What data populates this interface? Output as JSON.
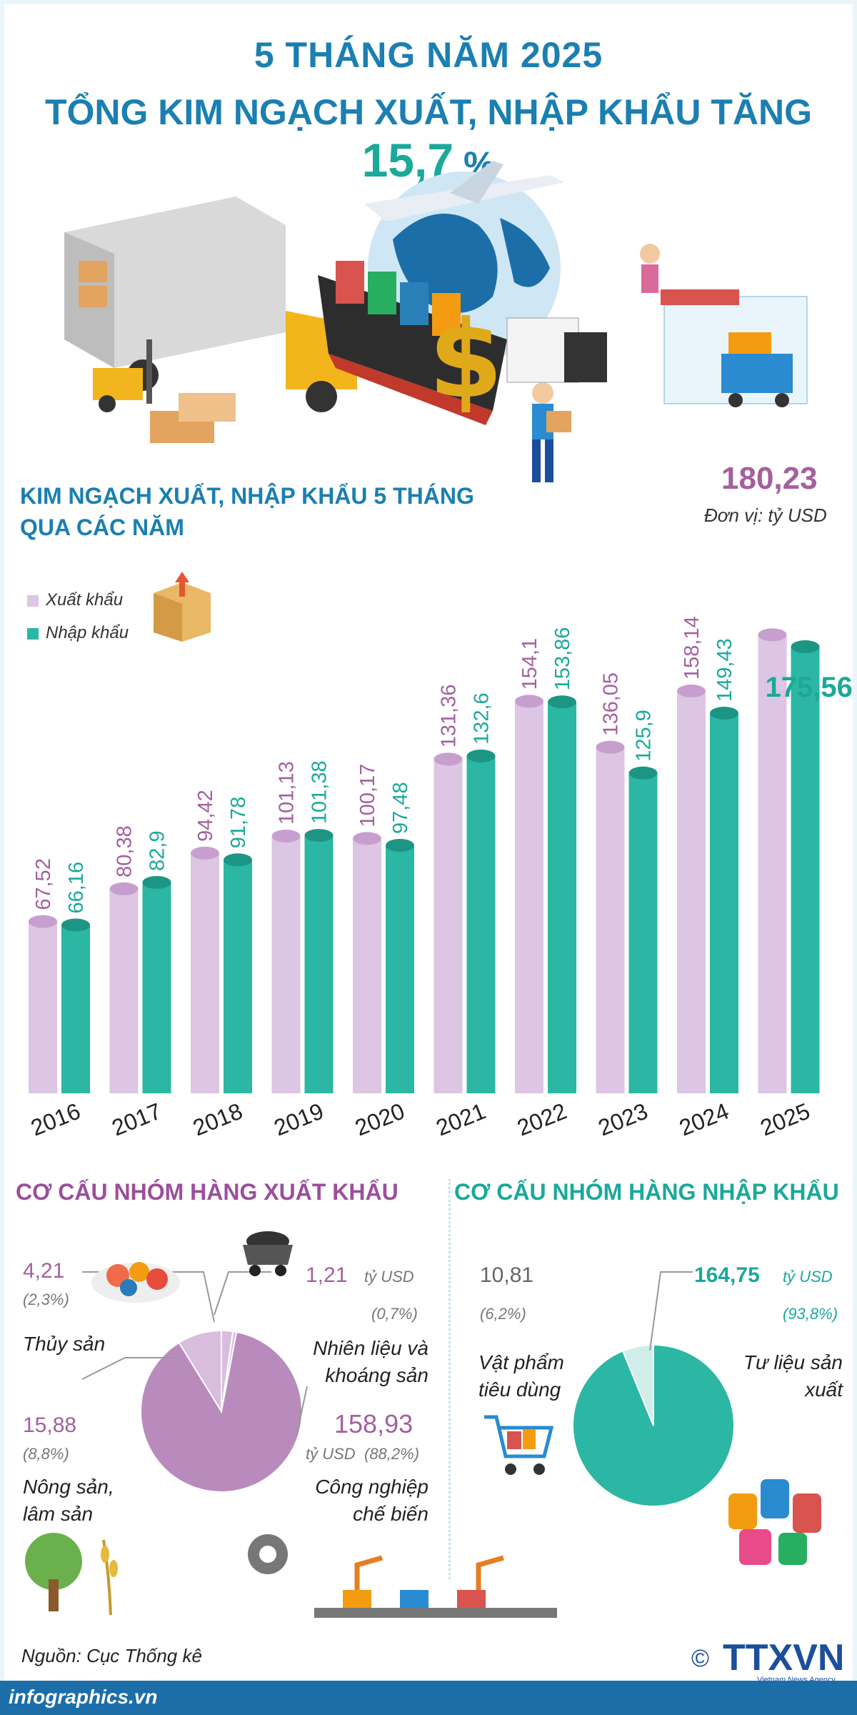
{
  "header": {
    "line1": "5 THÁNG NĂM 2025",
    "line2_prefix": "TỔNG KIM NGẠCH XUẤT, NHẬP KHẨU TĂNG ",
    "line2_highlight": "15,7",
    "line2_suffix": " %"
  },
  "chart_data": [
    {
      "type": "bar",
      "title": "KIM NGẠCH XUẤT, NHẬP KHẨU 5 THÁNG QUA CÁC NĂM",
      "title_line1": "KIM NGẠCH XUẤT, NHẬP KHẨU 5 THÁNG",
      "title_line2": "QUA CÁC NĂM",
      "unit": "Đơn vị: tỷ USD",
      "categories": [
        "2016",
        "2017",
        "2018",
        "2019",
        "2020",
        "2021",
        "2022",
        "2023",
        "2024",
        "2025"
      ],
      "series": [
        {
          "name": "Xuất khẩu",
          "color": "#dcc6e3",
          "labelColor": "#a3609d",
          "values": [
            67.52,
            80.38,
            94.42,
            101.13,
            100.17,
            131.36,
            154.1,
            136.05,
            158.14,
            180.23
          ],
          "labels": [
            "67,52",
            "80,38",
            "94,42",
            "101,13",
            "100,17",
            "131,36",
            "154,1",
            "136,05",
            "158,14",
            "180,23"
          ]
        },
        {
          "name": "Nhập khẩu",
          "color": "#2bb7a3",
          "labelColor": "#1aa99a",
          "values": [
            66.16,
            82.9,
            91.78,
            101.38,
            97.48,
            132.6,
            153.86,
            125.9,
            149.43,
            175.56
          ],
          "labels": [
            "66,16",
            "82,9",
            "91,78",
            "101,38",
            "97,48",
            "132,6",
            "153,86",
            "125,9",
            "149,43",
            "175,56"
          ]
        }
      ],
      "ylim": [
        0,
        190
      ],
      "grid": false,
      "legend": "left"
    },
    {
      "type": "pie",
      "title": "CƠ CẤU NHÓM HÀNG XUẤT KHẨU",
      "color": "#b98bbd",
      "slices": [
        {
          "name": "Thủy sản",
          "value": 4.21,
          "value_label": "4,21",
          "percent": "(2,3%)",
          "pct": 2.3
        },
        {
          "name": "Nhiên liệu và khoáng sản",
          "value": 1.21,
          "value_label": "1,21",
          "unit": "tỷ USD",
          "percent": "(0,7%)",
          "pct": 0.7
        },
        {
          "name": "Công nghiệp chế biến",
          "value": 158.93,
          "value_label": "158,93",
          "unit": "tỷ USD",
          "percent": "(88,2%)",
          "pct": 88.2
        },
        {
          "name": "Nông sản, lâm sản",
          "value": 15.88,
          "value_label": "15,88",
          "percent": "(8,8%)",
          "pct": 8.8
        }
      ]
    },
    {
      "type": "pie",
      "title": "CƠ CẤU NHÓM HÀNG NHẬP KHẨU",
      "color": "#2bb7a3",
      "slices": [
        {
          "name": "Tư liệu sản xuất",
          "value": 164.75,
          "value_label": "164,75",
          "unit": "tỷ USD",
          "percent": "(93,8%)",
          "pct": 93.8
        },
        {
          "name": "Vật phẩm tiêu dùng",
          "value": 10.81,
          "value_label": "10,81",
          "percent": "(6,2%)",
          "pct": 6.2
        }
      ]
    }
  ],
  "footer": {
    "source": "Nguồn: Cục Thống kê",
    "site": "infographics.vn",
    "logo": "TTXVN",
    "logo_sub": "Vietnam News Agency",
    "copyright": "©"
  }
}
